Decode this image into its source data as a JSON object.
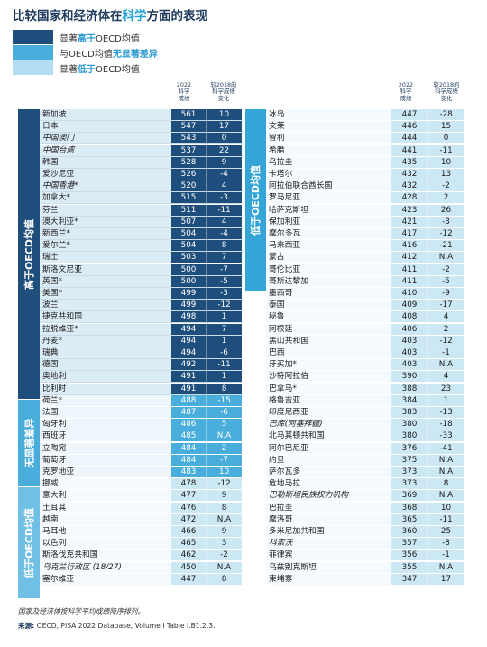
{
  "title": {
    "prefix": "比较国家和经济体在",
    "highlight": "科学",
    "suffix": "方面的表现"
  },
  "legend": [
    {
      "prefix": "显著",
      "bold": "高于",
      "suffix": "OECD均值",
      "color": "#1e4e7c"
    },
    {
      "prefix": "与OECD均值",
      "bold": "无显著差异",
      "suffix": "",
      "color": "#4aaedc"
    },
    {
      "prefix": "显著",
      "bold": "低于",
      "suffix": "OECD均值",
      "color": "#b3ddf2"
    }
  ],
  "header": {
    "score": [
      "2022",
      "科学",
      "成绩"
    ],
    "change": [
      "较2018的",
      "科学成绩",
      "变化"
    ]
  },
  "groups": {
    "above": "高于OECD均值",
    "nodiff": "无显著差异",
    "below_left": "低于OECD均值",
    "below_right": "低于OECD均值"
  },
  "colors": {
    "above": {
      "name": "#dcecf5",
      "score": "#1e4e7c",
      "text": "#ffffff",
      "sep": "#c9dce8"
    },
    "nodiff": {
      "name": "#eef6fb",
      "score": "#4aaedc",
      "text": "#ffffff",
      "sep": "#ffffff"
    },
    "below": {
      "name": "#f4fafd",
      "score": "#cde8f5",
      "text": "#1a1a1a",
      "sep": "#ffffff"
    },
    "label_above": "#1e4e7c",
    "label_nodiff": "#4aaedc",
    "label_below": "#6fc0e4"
  },
  "left_rows": [
    {
      "name": "新加坡",
      "score": "561",
      "change": "10",
      "group": "above"
    },
    {
      "name": "日本",
      "score": "547",
      "change": "17",
      "group": "above"
    },
    {
      "name": "中国澳门",
      "score": "543",
      "change": "0",
      "group": "above",
      "italic": true
    },
    {
      "name": "中国台湾",
      "score": "537",
      "change": "22",
      "group": "above",
      "italic": true
    },
    {
      "name": "韩国",
      "score": "528",
      "change": "9",
      "group": "above"
    },
    {
      "name": "爱沙尼亚",
      "score": "526",
      "change": "-4",
      "group": "above"
    },
    {
      "name": "中国香港*",
      "score": "520",
      "change": "4",
      "group": "above",
      "italic": true
    },
    {
      "name": "加拿大*",
      "score": "515",
      "change": "-3",
      "group": "above"
    },
    {
      "name": "芬兰",
      "score": "511",
      "change": "-11",
      "group": "above"
    },
    {
      "name": "澳大利亚*",
      "score": "507",
      "change": "4",
      "group": "above"
    },
    {
      "name": "新西兰*",
      "score": "504",
      "change": "-4",
      "group": "above"
    },
    {
      "name": "爱尔兰*",
      "score": "504",
      "change": "8",
      "group": "above"
    },
    {
      "name": "瑞士",
      "score": "503",
      "change": "7",
      "group": "above"
    },
    {
      "name": "斯洛文尼亚",
      "score": "500",
      "change": "-7",
      "group": "above"
    },
    {
      "name": "英国*",
      "score": "500",
      "change": "-5",
      "group": "above"
    },
    {
      "name": "美国*",
      "score": "499",
      "change": "-3",
      "group": "above"
    },
    {
      "name": "波兰",
      "score": "499",
      "change": "-12",
      "group": "above"
    },
    {
      "name": "捷克共和国",
      "score": "498",
      "change": "1",
      "group": "above"
    },
    {
      "name": "拉脱维亚*",
      "score": "494",
      "change": "7",
      "group": "above"
    },
    {
      "name": "丹麦*",
      "score": "494",
      "change": "1",
      "group": "above"
    },
    {
      "name": "瑞典",
      "score": "494",
      "change": "-6",
      "group": "above"
    },
    {
      "name": "德国",
      "score": "492",
      "change": "-11",
      "group": "above"
    },
    {
      "name": "奥地利",
      "score": "491",
      "change": "1",
      "group": "above"
    },
    {
      "name": "比利时",
      "score": "491",
      "change": "8",
      "group": "above"
    },
    {
      "name": "荷兰*",
      "score": "488",
      "change": "-15",
      "group": "nodiff"
    },
    {
      "name": "法国",
      "score": "487",
      "change": "-6",
      "group": "nodiff"
    },
    {
      "name": "匈牙利",
      "score": "486",
      "change": "5",
      "group": "nodiff"
    },
    {
      "name": "西班牙",
      "score": "485",
      "change": "N.A",
      "group": "nodiff"
    },
    {
      "name": "立陶宛",
      "score": "484",
      "change": "2",
      "group": "nodiff"
    },
    {
      "name": "葡萄牙",
      "score": "484",
      "change": "-7",
      "group": "nodiff"
    },
    {
      "name": "克罗地亚",
      "score": "483",
      "change": "10",
      "group": "nodiff"
    },
    {
      "name": "挪威",
      "score": "478",
      "change": "-12",
      "group": "below"
    },
    {
      "name": "意大利",
      "score": "477",
      "change": "9",
      "group": "below"
    },
    {
      "name": "土耳其",
      "score": "476",
      "change": "8",
      "group": "below"
    },
    {
      "name": "越南",
      "score": "472",
      "change": "N.A",
      "group": "below"
    },
    {
      "name": "马耳他",
      "score": "466",
      "change": "9",
      "group": "below"
    },
    {
      "name": "以色列",
      "score": "465",
      "change": "3",
      "group": "below"
    },
    {
      "name": "斯洛伐克共和国",
      "score": "462",
      "change": "-2",
      "group": "below"
    },
    {
      "name": "乌克兰行政区 (18/27)",
      "score": "450",
      "change": "N.A",
      "group": "below",
      "italic": true
    },
    {
      "name": "塞尔维亚",
      "score": "447",
      "change": "8",
      "group": "below"
    }
  ],
  "right_rows": [
    {
      "name": "冰岛",
      "score": "447",
      "change": "-28"
    },
    {
      "name": "文莱",
      "score": "446",
      "change": "15"
    },
    {
      "name": "智利",
      "score": "444",
      "change": "0"
    },
    {
      "name": "希腊",
      "score": "441",
      "change": "-11"
    },
    {
      "name": "乌拉圭",
      "score": "435",
      "change": "10"
    },
    {
      "name": "卡塔尔",
      "score": "432",
      "change": "13"
    },
    {
      "name": "阿拉伯联合酋长国",
      "score": "432",
      "change": "-2"
    },
    {
      "name": "罗马尼亚",
      "score": "428",
      "change": "2"
    },
    {
      "name": "哈萨克斯坦",
      "score": "423",
      "change": "26"
    },
    {
      "name": "保加利亚",
      "score": "421",
      "change": "-3"
    },
    {
      "name": "摩尔多瓦",
      "score": "417",
      "change": "-12"
    },
    {
      "name": "马来西亚",
      "score": "416",
      "change": "-21"
    },
    {
      "name": "蒙古",
      "score": "412",
      "change": "N.A"
    },
    {
      "name": "哥伦比亚",
      "score": "411",
      "change": "-2"
    },
    {
      "name": "哥斯达黎加",
      "score": "411",
      "change": "-5"
    },
    {
      "name": "墨西哥",
      "score": "410",
      "change": "-9"
    },
    {
      "name": "泰国",
      "score": "409",
      "change": "-17"
    },
    {
      "name": "秘鲁",
      "score": "408",
      "change": "4"
    },
    {
      "name": "阿根廷",
      "score": "406",
      "change": "2"
    },
    {
      "name": "黑山共和国",
      "score": "403",
      "change": "-12"
    },
    {
      "name": "巴西",
      "score": "403",
      "change": "-1"
    },
    {
      "name": "牙买加*",
      "score": "403",
      "change": "N.A"
    },
    {
      "name": "沙特阿拉伯",
      "score": "390",
      "change": "4"
    },
    {
      "name": "巴拿马*",
      "score": "388",
      "change": "23"
    },
    {
      "name": "格鲁吉亚",
      "score": "384",
      "change": "1"
    },
    {
      "name": "印度尼西亚",
      "score": "383",
      "change": "-13"
    },
    {
      "name": "巴库(阿塞拜疆)",
      "score": "380",
      "change": "-18",
      "italic": true
    },
    {
      "name": "北马其顿共和国",
      "score": "380",
      "change": "-33"
    },
    {
      "name": "阿尔巴尼亚",
      "score": "376",
      "change": "-41"
    },
    {
      "name": "约旦",
      "score": "375",
      "change": "N.A"
    },
    {
      "name": "萨尔瓦多",
      "score": "373",
      "change": "N.A"
    },
    {
      "name": "危地马拉",
      "score": "373",
      "change": "8"
    },
    {
      "name": "巴勒斯坦民族权力机构",
      "score": "369",
      "change": "N.A",
      "italic": true
    },
    {
      "name": "巴拉圭",
      "score": "368",
      "change": "10"
    },
    {
      "name": "摩洛哥",
      "score": "365",
      "change": "-11"
    },
    {
      "name": "多米尼加共和国",
      "score": "360",
      "change": "25"
    },
    {
      "name": "科索沃",
      "score": "357",
      "change": "-8",
      "italic": true
    },
    {
      "name": "菲律宾",
      "score": "356",
      "change": "-1"
    },
    {
      "name": "乌兹别克斯坦",
      "score": "355",
      "change": "N.A"
    },
    {
      "name": "柬埔寨",
      "score": "347",
      "change": "17"
    }
  ],
  "note": "国家及经济体按科学平均成绩降序排列。",
  "source": {
    "label": "来源:",
    "text": " OECD, PISA 2022 Database, Volume I Table I.B1.2.3."
  }
}
